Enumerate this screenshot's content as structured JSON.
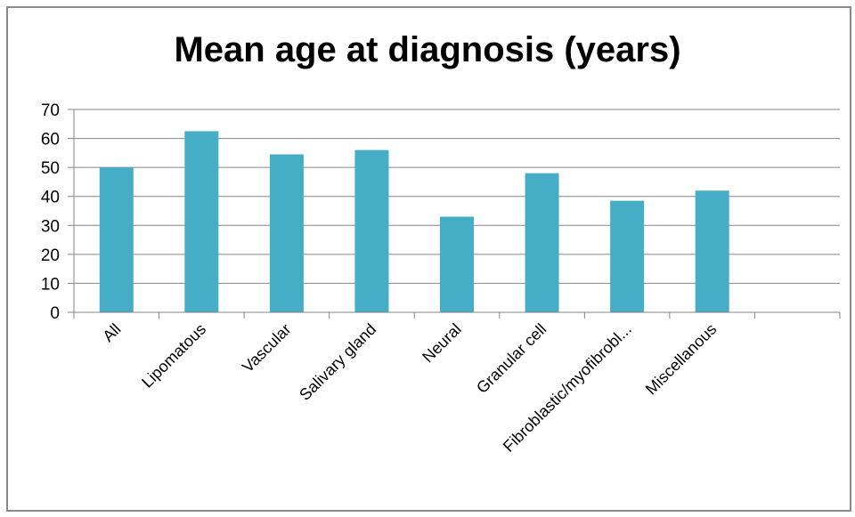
{
  "chart_data": {
    "type": "bar",
    "title": "Mean age at diagnosis (years)",
    "xlabel": "",
    "ylabel": "",
    "categories": [
      "All",
      "Lipomatous",
      "Vascular",
      "Salivary gland",
      "Neural",
      "Granular cell",
      "Fibroblastic/myofibrobl...",
      "Miscellanous",
      ""
    ],
    "values": [
      50,
      62.5,
      54.5,
      56,
      33,
      48,
      38.5,
      42,
      null
    ],
    "ylim": [
      0,
      70
    ],
    "yticks": [
      0,
      10,
      20,
      30,
      40,
      50,
      60,
      70
    ],
    "yticklabels": [
      "0",
      "10",
      "20",
      "30",
      "40",
      "50",
      "60",
      "70"
    ],
    "grid": true,
    "legend": "none",
    "colors": {
      "bar": "#45adc6",
      "grid": "#868686",
      "axis": "#868686",
      "frame": "#8c8c8c"
    }
  }
}
